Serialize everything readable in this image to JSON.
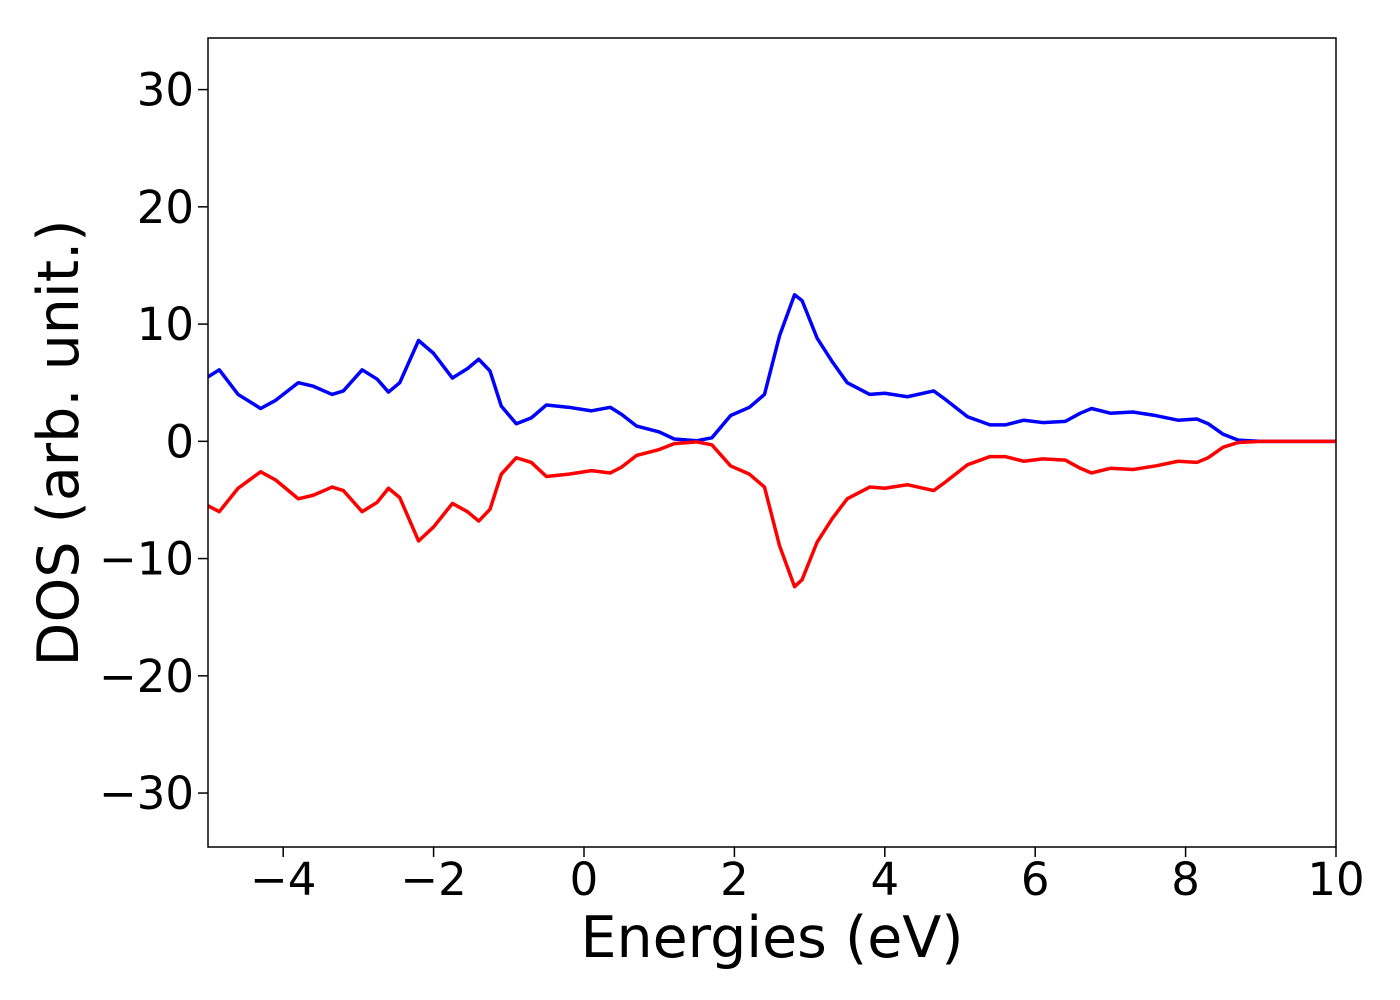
{
  "chart_data": {
    "type": "line",
    "xlabel": "Energies (eV)",
    "ylabel": "DOS (arb. unit.)",
    "x": [
      -5,
      -4.85,
      -4.6,
      -4.3,
      -4.1,
      -3.8,
      -3.6,
      -3.35,
      -3.2,
      -2.95,
      -2.75,
      -2.6,
      -2.45,
      -2.2,
      -2.0,
      -1.75,
      -1.55,
      -1.4,
      -1.25,
      -1.1,
      -0.9,
      -0.7,
      -0.5,
      -0.2,
      0.1,
      0.35,
      0.5,
      0.7,
      1.0,
      1.2,
      1.5,
      1.7,
      1.95,
      2.2,
      2.4,
      2.6,
      2.8,
      2.9,
      3.1,
      3.3,
      3.5,
      3.8,
      4.0,
      4.3,
      4.65,
      4.8,
      5.1,
      5.4,
      5.6,
      5.85,
      6.1,
      6.4,
      6.6,
      6.75,
      7.0,
      7.3,
      7.6,
      7.9,
      8.15,
      8.3,
      8.5,
      8.7,
      9.0,
      10
    ],
    "series": [
      {
        "color": "#0000ff",
        "values": [
          5.5,
          6.1,
          4.0,
          2.8,
          3.5,
          5.0,
          4.7,
          4.0,
          4.3,
          6.1,
          5.3,
          4.2,
          5.0,
          8.6,
          7.5,
          5.4,
          6.2,
          7.0,
          6.0,
          3.0,
          1.5,
          2.0,
          3.1,
          2.9,
          2.6,
          2.9,
          2.3,
          1.3,
          0.8,
          0.2,
          0.05,
          0.3,
          2.2,
          2.9,
          4.0,
          9.0,
          12.5,
          12.0,
          8.8,
          6.8,
          5.0,
          4.0,
          4.1,
          3.8,
          4.3,
          3.6,
          2.1,
          1.4,
          1.4,
          1.8,
          1.6,
          1.7,
          2.4,
          2.8,
          2.4,
          2.5,
          2.2,
          1.8,
          1.9,
          1.5,
          0.6,
          0.1,
          0,
          0
        ]
      },
      {
        "color": "#ff0000",
        "values": [
          -5.5,
          -6.0,
          -4.0,
          -2.6,
          -3.3,
          -4.9,
          -4.6,
          -3.9,
          -4.2,
          -6.0,
          -5.2,
          -4.0,
          -4.8,
          -8.5,
          -7.3,
          -5.3,
          -6.0,
          -6.8,
          -5.8,
          -2.8,
          -1.4,
          -1.8,
          -3.0,
          -2.8,
          -2.5,
          -2.7,
          -2.2,
          -1.2,
          -0.7,
          -0.2,
          -0.05,
          -0.3,
          -2.1,
          -2.8,
          -3.9,
          -8.9,
          -12.4,
          -11.8,
          -8.6,
          -6.6,
          -4.9,
          -3.9,
          -4.0,
          -3.7,
          -4.2,
          -3.5,
          -2.0,
          -1.3,
          -1.3,
          -1.7,
          -1.5,
          -1.6,
          -2.3,
          -2.7,
          -2.3,
          -2.4,
          -2.1,
          -1.7,
          -1.8,
          -1.4,
          -0.5,
          -0.1,
          0,
          0
        ]
      }
    ],
    "xlim": [
      -5,
      10
    ],
    "xticks": [
      {
        "value": -4,
        "label": "−4"
      },
      {
        "value": -2,
        "label": "−2"
      },
      0,
      2,
      4,
      6,
      8,
      10
    ],
    "ylim": [
      -34.6,
      34.4
    ],
    "yticks": [
      {
        "value": -30,
        "label": "−30"
      },
      {
        "value": -20,
        "label": "−20"
      },
      {
        "value": -10,
        "label": "−10"
      },
      0,
      10,
      20,
      30
    ],
    "grid": false
  }
}
